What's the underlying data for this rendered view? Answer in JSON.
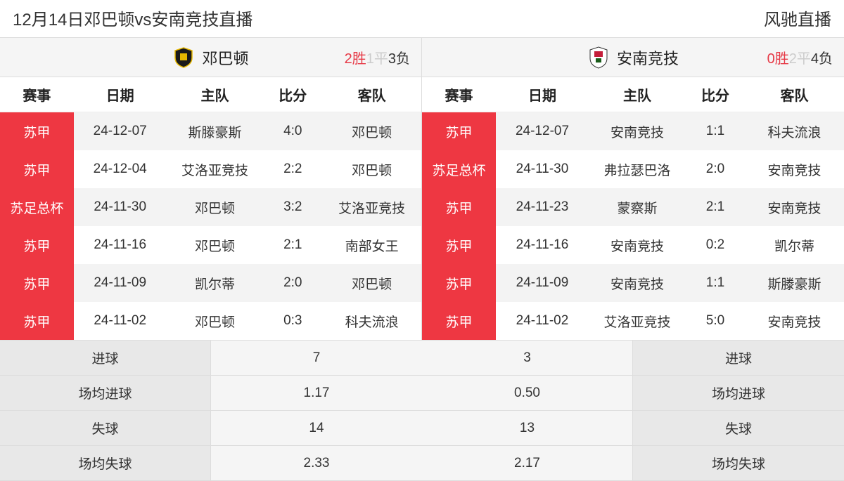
{
  "header": {
    "title": "12月14日邓巴顿vs安南竞技直播",
    "brand": "风驰直播"
  },
  "columns": {
    "event": "赛事",
    "date": "日期",
    "home": "主队",
    "score": "比分",
    "away": "客队"
  },
  "left": {
    "team_name": "邓巴顿",
    "logo_bg": "#1a1a1a",
    "logo_accent": "#e6b800",
    "record": {
      "win": "2胜",
      "draw": "1平",
      "loss": "3负"
    },
    "rows": [
      {
        "event": "苏甲",
        "date": "24-12-07",
        "home": "斯滕豪斯",
        "score": "4:0",
        "away": "邓巴顿"
      },
      {
        "event": "苏甲",
        "date": "24-12-04",
        "home": "艾洛亚竞技",
        "score": "2:2",
        "away": "邓巴顿"
      },
      {
        "event": "苏足总杯",
        "date": "24-11-30",
        "home": "邓巴顿",
        "score": "3:2",
        "away": "艾洛亚竞技"
      },
      {
        "event": "苏甲",
        "date": "24-11-16",
        "home": "邓巴顿",
        "score": "2:1",
        "away": "南部女王"
      },
      {
        "event": "苏甲",
        "date": "24-11-09",
        "home": "凯尔蒂",
        "score": "2:0",
        "away": "邓巴顿"
      },
      {
        "event": "苏甲",
        "date": "24-11-02",
        "home": "邓巴顿",
        "score": "0:3",
        "away": "科夫流浪"
      }
    ]
  },
  "right": {
    "team_name": "安南竞技",
    "logo_bg": "#ffffff",
    "logo_accent": "#c41e3a",
    "record": {
      "win": "0胜",
      "draw": "2平",
      "loss": "4负"
    },
    "rows": [
      {
        "event": "苏甲",
        "date": "24-12-07",
        "home": "安南竞技",
        "score": "1:1",
        "away": "科夫流浪"
      },
      {
        "event": "苏足总杯",
        "date": "24-11-30",
        "home": "弗拉瑟巴洛",
        "score": "2:0",
        "away": "安南竞技"
      },
      {
        "event": "苏甲",
        "date": "24-11-23",
        "home": "蒙察斯",
        "score": "2:1",
        "away": "安南竞技"
      },
      {
        "event": "苏甲",
        "date": "24-11-16",
        "home": "安南竞技",
        "score": "0:2",
        "away": "凯尔蒂"
      },
      {
        "event": "苏甲",
        "date": "24-11-09",
        "home": "安南竞技",
        "score": "1:1",
        "away": "斯滕豪斯"
      },
      {
        "event": "苏甲",
        "date": "24-11-02",
        "home": "艾洛亚竞技",
        "score": "5:0",
        "away": "安南竞技"
      }
    ]
  },
  "stats": {
    "labels": {
      "goals": "进球",
      "avg_goals": "场均进球",
      "conceded": "失球",
      "avg_conceded": "场均失球"
    },
    "left": {
      "goals": "7",
      "avg_goals": "1.17",
      "conceded": "14",
      "avg_conceded": "2.33"
    },
    "right": {
      "goals": "3",
      "avg_goals": "0.50",
      "conceded": "13",
      "avg_conceded": "2.17"
    }
  }
}
